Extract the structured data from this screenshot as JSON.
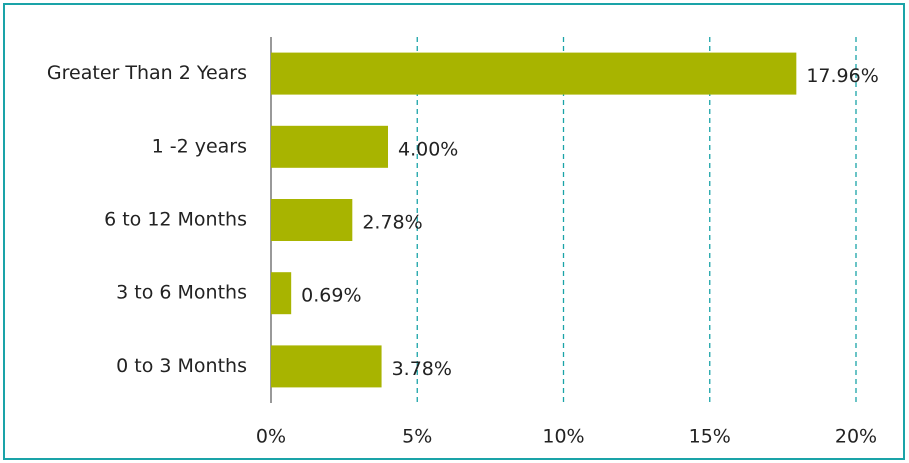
{
  "chart_data": {
    "type": "bar",
    "orientation": "horizontal",
    "categories": [
      "Greater Than 2 Years",
      "1 -2 years",
      "6 to 12 Months",
      "3 to 6 Months",
      "0 to 3 Months"
    ],
    "values": [
      17.96,
      4.0,
      2.78,
      0.69,
      3.78
    ],
    "value_labels": [
      "17.96%",
      "4.00%",
      "2.78%",
      "0.69%",
      "3.78%"
    ],
    "color": "#a8b400",
    "xlim": [
      0,
      20
    ],
    "xticks": [
      {
        "value": 0,
        "label": "0%"
      },
      {
        "value": 5,
        "label": "5%"
      },
      {
        "value": 10,
        "label": "10%"
      },
      {
        "value": 15,
        "label": "15%"
      },
      {
        "value": 20,
        "label": "20%"
      }
    ],
    "grid": true,
    "grid_color": "#1aa3a8"
  }
}
